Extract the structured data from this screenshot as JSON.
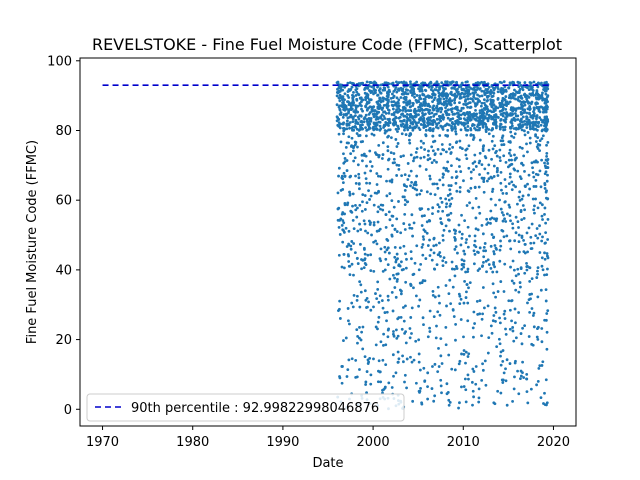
{
  "chart_data": {
    "type": "scatter",
    "title": "REVELSTOKE - Fine Fuel Moisture Code (FFMC), Scatterplot",
    "xlabel": "Date",
    "ylabel": "Fine Fuel Moisture Code (FFMC)",
    "xlim": [
      1967.5,
      2022.5
    ],
    "ylim": [
      -4.8,
      100.8
    ],
    "x_ticks": [
      1970,
      1980,
      1990,
      2000,
      2010,
      2020
    ],
    "y_ticks": [
      0,
      20,
      40,
      60,
      80,
      100
    ],
    "grid": false,
    "legend_position": "lower-left",
    "colors": {
      "points": "#1f77b4",
      "reference_line": "#0000cc"
    },
    "reference_line": {
      "label": "90th percentile : 92.99822998046876",
      "value": 92.99822998046876,
      "x_range": [
        1970,
        2019.5
      ],
      "style": "dashed"
    },
    "series": [
      {
        "seasons": [
          [
            1996,
            1996.9
          ],
          [
            1997,
            1997.9
          ],
          [
            1998,
            1998.9
          ],
          [
            1999,
            1999.9
          ],
          [
            2000,
            2000.9
          ],
          [
            2001,
            2001.9
          ],
          [
            2002,
            2002.9
          ],
          [
            2003,
            2003.9
          ],
          [
            2004,
            2004.9
          ],
          [
            2005,
            2005.9
          ],
          [
            2006,
            2006.9
          ],
          [
            2007,
            2007.9
          ],
          [
            2008,
            2008.9
          ],
          [
            2009,
            2009.9
          ],
          [
            2010,
            2010.9
          ],
          [
            2011,
            2011.9
          ],
          [
            2012,
            2012.9
          ],
          [
            2013,
            2013.9
          ],
          [
            2014,
            2014.9
          ],
          [
            2015,
            2015.9
          ],
          [
            2016,
            2016.9
          ],
          [
            2017,
            2017.9
          ],
          [
            2018,
            2018.9
          ],
          [
            2019,
            2019.4
          ]
        ],
        "observations_per_season": 130,
        "typical_range": [
          0,
          96
        ],
        "dense_band": [
          80,
          94
        ]
      }
    ]
  }
}
